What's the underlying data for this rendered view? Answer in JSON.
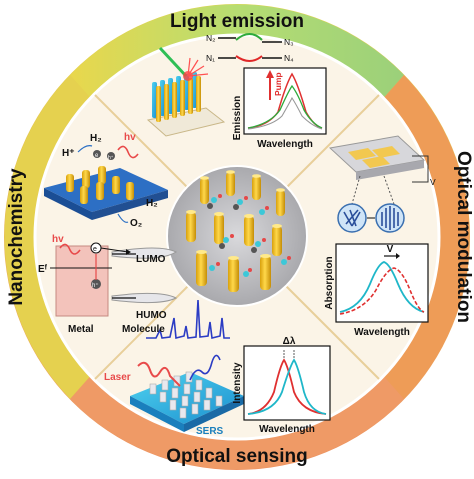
{
  "ring_titles": {
    "top": "Light emission",
    "right": "Optical modulation",
    "bottom": "Optical sensing",
    "left": "Nanochemistry"
  },
  "light_emission": {
    "states": [
      "N₂",
      "N₁",
      "N₃",
      "N₄"
    ],
    "pump_label": "Pump",
    "y_axis": "Emission",
    "x_axis": "Wavelength"
  },
  "optical_modulation": {
    "y_axis": "Absorption",
    "x_axis": "Wavelength",
    "shift_label": "V",
    "device_label": "V"
  },
  "optical_sensing": {
    "y_axis": "Intensity",
    "x_axis": "Wavelength",
    "shift_label": "Δλ",
    "laser_label": "Laser",
    "sers_label": "SERS"
  },
  "nanochemistry": {
    "hv_label": "hv",
    "h_plus": "H⁺",
    "h2": "H₂",
    "h2_bottom": "H₂",
    "o2": "O₂",
    "ef": "Eᶠ",
    "lumo": "LUMO",
    "humo": "HUMO",
    "molecule": "Molecule",
    "metal": "Metal",
    "electron": "e",
    "hole": "h⁺",
    "electron_upper": "e",
    "hole_upper": "h⁺"
  },
  "colors": {
    "ring_top": "#b8dd6a",
    "ring_right": "#ef9a56",
    "ring_left": "#e6d24e",
    "ring_bottom": "#ec9a5a",
    "panel_bg": "#fcf6e9",
    "nanopillar": "#f2c320",
    "curve_red": "#e03030",
    "curve_cyan": "#1fb7c9"
  }
}
